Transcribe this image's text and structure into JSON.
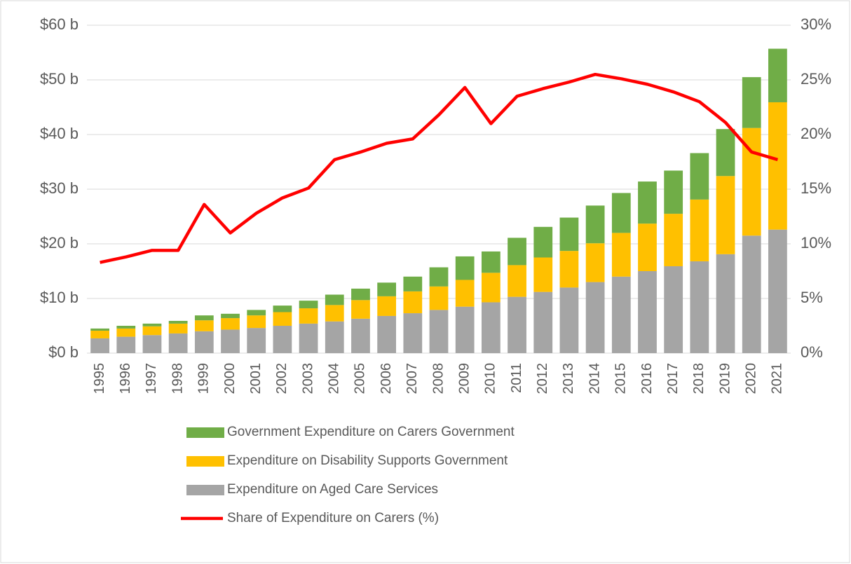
{
  "chart_data": {
    "type": "bar_line",
    "categories": [
      "1995",
      "1996",
      "1997",
      "1998",
      "1999",
      "2000",
      "2001",
      "2002",
      "2003",
      "2004",
      "2005",
      "2006",
      "2007",
      "2008",
      "2009",
      "2010",
      "2011",
      "2012",
      "2013",
      "2014",
      "2015",
      "2016",
      "2017",
      "2018",
      "2019",
      "2020",
      "2021"
    ],
    "series": [
      {
        "name": "Expenditure on Aged Care Services",
        "color": "#a5a5a5",
        "type": "bar",
        "values": [
          2.7,
          3.0,
          3.3,
          3.6,
          4.0,
          4.3,
          4.6,
          5.0,
          5.4,
          5.8,
          6.3,
          6.8,
          7.3,
          7.9,
          8.5,
          9.3,
          10.3,
          11.2,
          12.0,
          13.0,
          14.0,
          15.0,
          15.9,
          16.8,
          18.1,
          21.5,
          22.6
        ]
      },
      {
        "name": "Expenditure on Disability Supports Government",
        "color": "#ffc000",
        "type": "bar",
        "values": [
          1.4,
          1.5,
          1.6,
          1.8,
          2.0,
          2.1,
          2.3,
          2.5,
          2.8,
          3.0,
          3.4,
          3.6,
          4.0,
          4.3,
          4.9,
          5.4,
          5.8,
          6.3,
          6.7,
          7.1,
          8.0,
          8.7,
          9.6,
          11.3,
          14.3,
          19.7,
          23.3
        ]
      },
      {
        "name": "Government Expenditure on Carers Government",
        "color": "#70ad47",
        "type": "bar",
        "values": [
          0.4,
          0.5,
          0.5,
          0.5,
          0.9,
          0.8,
          1.0,
          1.2,
          1.4,
          1.9,
          2.1,
          2.5,
          2.7,
          3.5,
          4.3,
          3.9,
          5.0,
          5.6,
          6.1,
          6.9,
          7.3,
          7.7,
          7.9,
          8.5,
          8.6,
          9.3,
          9.8
        ]
      },
      {
        "name": "Share of Expenditure on Carers (%)",
        "color": "#ff0000",
        "type": "line",
        "axis": "y2",
        "values": [
          8.3,
          8.8,
          9.4,
          9.4,
          13.6,
          11.0,
          12.8,
          14.2,
          15.1,
          17.7,
          18.4,
          19.2,
          19.6,
          21.8,
          24.3,
          21.0,
          23.5,
          24.2,
          24.8,
          25.5,
          25.1,
          24.6,
          23.9,
          23.0,
          21.1,
          18.4,
          17.7
        ]
      }
    ],
    "ylim": [
      0,
      60
    ],
    "yticks": [
      {
        "value": 0,
        "label": "$0 b"
      },
      {
        "value": 10,
        "label": "$10 b"
      },
      {
        "value": 20,
        "label": "$20 b"
      },
      {
        "value": 30,
        "label": "$30 b"
      },
      {
        "value": 40,
        "label": "$40 b"
      },
      {
        "value": 50,
        "label": "$50 b"
      },
      {
        "value": 60,
        "label": "$60 b"
      }
    ],
    "y2lim": [
      0,
      30
    ],
    "y2ticks": [
      {
        "value": 0,
        "label": "0%"
      },
      {
        "value": 5,
        "label": "5%"
      },
      {
        "value": 10,
        "label": "10%"
      },
      {
        "value": 15,
        "label": "15%"
      },
      {
        "value": 20,
        "label": "20%"
      },
      {
        "value": 25,
        "label": "25%"
      },
      {
        "value": 30,
        "label": "30%"
      }
    ],
    "grid": true,
    "legend": "bottom"
  }
}
